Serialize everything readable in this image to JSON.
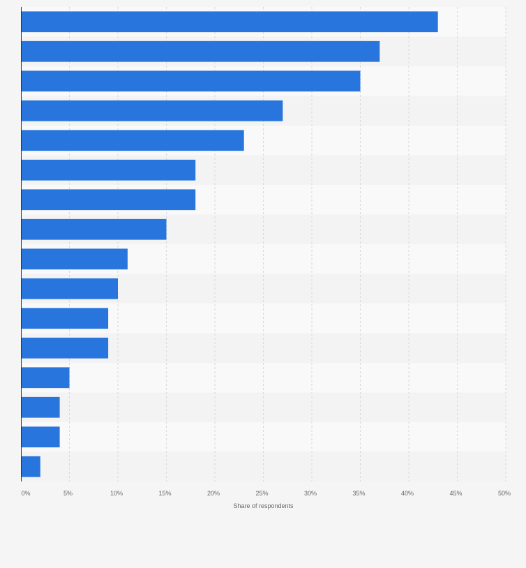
{
  "chart_data": {
    "type": "bar",
    "orientation": "horizontal",
    "categories": [
      "",
      "",
      "",
      "",
      "",
      "",
      "",
      "",
      "",
      "",
      "",
      "",
      "",
      "",
      "",
      ""
    ],
    "values": [
      43,
      37,
      35,
      27,
      23,
      18,
      18,
      15,
      11,
      10,
      9,
      9,
      5,
      4,
      4,
      2
    ],
    "title": "",
    "xlabel": "Share of respondents",
    "ylabel": "",
    "xlim": [
      0,
      50
    ],
    "xticks": [
      0,
      5,
      10,
      15,
      20,
      25,
      30,
      35,
      40,
      45,
      50
    ],
    "xtick_labels": [
      "0%",
      "5%",
      "10%",
      "15%",
      "20%",
      "25%",
      "30%",
      "35%",
      "40%",
      "45%",
      "50%"
    ],
    "grid": true,
    "legend": "none",
    "colors": {
      "bar": "#2876dd",
      "band_light": "#f9f9f9",
      "band_dark": "#f3f3f3",
      "grid": "#d8d8d8",
      "axis": "#333333",
      "tick_label": "#666666"
    }
  }
}
